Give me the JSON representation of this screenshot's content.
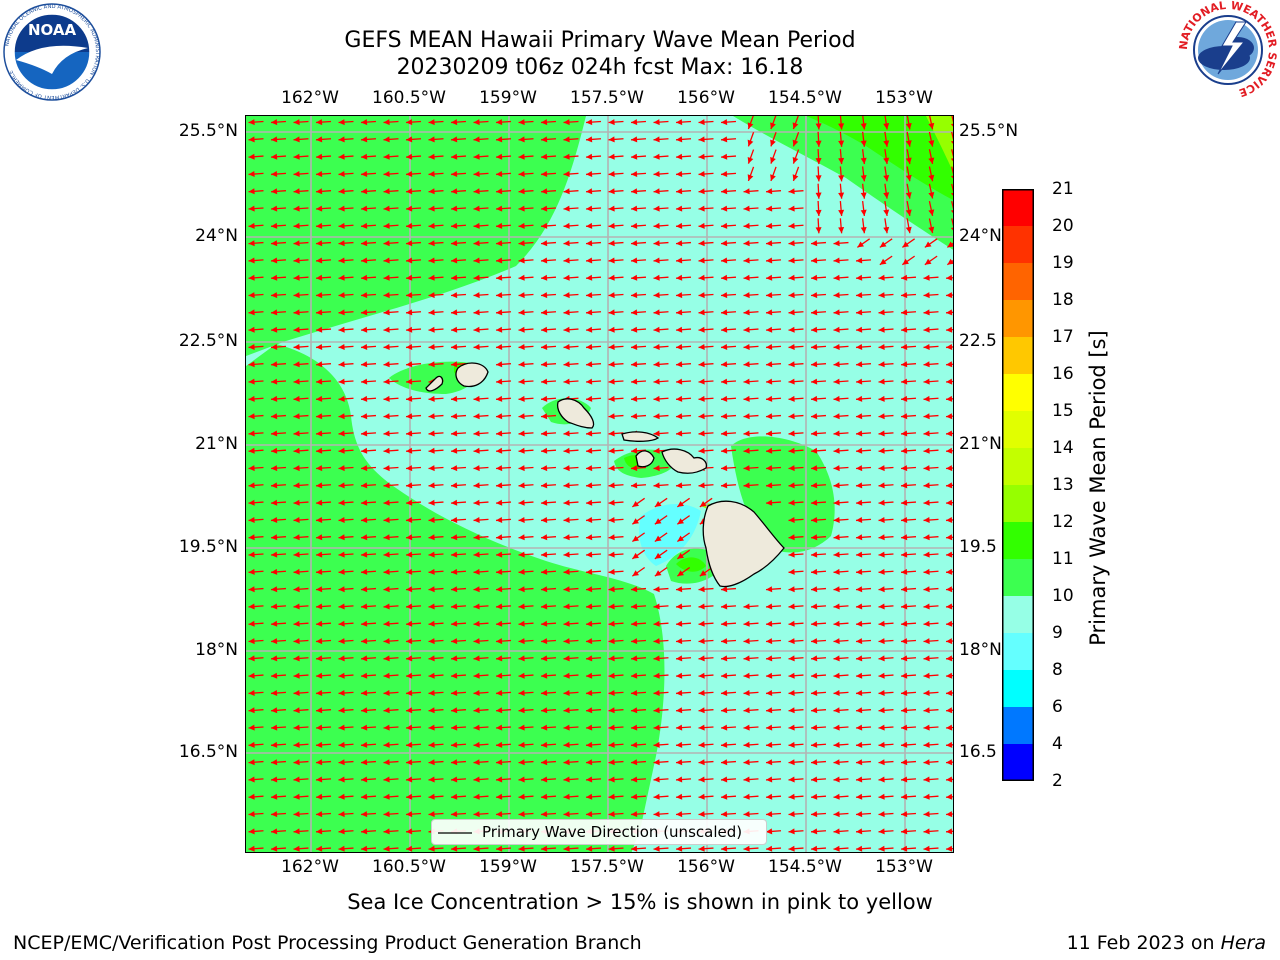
{
  "header": {
    "title_line1": "GEFS MEAN Hawaii Primary Wave Mean Period",
    "title_line2": "20230209 t06z 024h fcst   Max: 16.18"
  },
  "logos": {
    "noaa_text": "NOAA",
    "noaa_ring": "NATIONAL OCEANIC AND ATMOSPHERIC ADMINISTRATION · U.S. DEPARTMENT OF COMMERCE",
    "nws_ring": "NATIONAL WEATHER SERVICE"
  },
  "map": {
    "lon_ticks": [
      "162°W",
      "160.5°W",
      "159°W",
      "157.5°W",
      "156°W",
      "154.5°W",
      "153°W"
    ],
    "lat_ticks": [
      "25.5°N",
      "24°N",
      "22.5°N",
      "21°N",
      "19.5°N",
      "18°N",
      "16.5°N"
    ],
    "lat_ticks_right": [
      "25.5°N",
      "24°N",
      "22.5",
      "21°N",
      "19.5",
      "18°N",
      "16.5"
    ],
    "legend_label": "Primary Wave Direction (unscaled)",
    "arrow_color": "#ff0000",
    "land_color": "#eeeadc"
  },
  "colorbar": {
    "title": "Primary Wave Mean Period [s]",
    "labels": [
      "21",
      "20",
      "19",
      "18",
      "17",
      "16",
      "15",
      "14",
      "13",
      "12",
      "11",
      "10",
      "9",
      "8",
      "6",
      "4",
      "2"
    ],
    "colors": [
      "#ff0000",
      "#ff3200",
      "#ff6400",
      "#ff9600",
      "#ffc800",
      "#ffff00",
      "#e1ff00",
      "#c3ff00",
      "#96ff00",
      "#32ff00",
      "#3cff50",
      "#96ffe6",
      "#64ffff",
      "#00ffff",
      "#0078ff",
      "#0000ff"
    ]
  },
  "footer": {
    "note": "Sea Ice Concentration > 15% is shown in pink to yellow",
    "credit": "NCEP/EMC/Verification Post Processing Product Generation Branch",
    "date": "11 Feb 2023 on ",
    "machine": "Hera"
  }
}
